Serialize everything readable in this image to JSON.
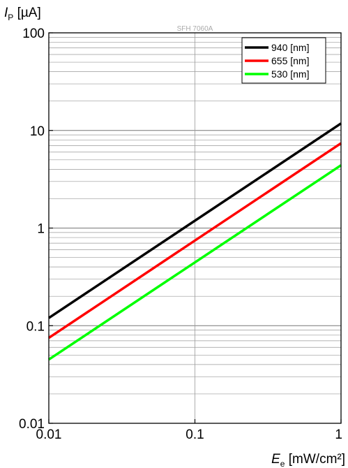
{
  "chart_data": {
    "type": "line",
    "watermark": "SFH 7060A",
    "xscale": "log",
    "yscale": "log",
    "xlim": [
      0.01,
      1
    ],
    "ylim": [
      0.01,
      100
    ],
    "xticks": [
      "0.01",
      "0.1",
      "1"
    ],
    "yticks": [
      "0.01",
      "0.1",
      "1",
      "10",
      "100"
    ],
    "xlabel": {
      "symbol": "E",
      "subscript": "e",
      "unit": " [mW/cm²]"
    },
    "ylabel": {
      "symbol": "I",
      "subscript": "P",
      "unit": " [µA]"
    },
    "grid": true,
    "legend_position": "top-right",
    "series": [
      {
        "name": "940 [nm]",
        "color": "#000000",
        "x": [
          0.01,
          1
        ],
        "y": [
          0.12,
          11.8
        ]
      },
      {
        "name": "655 [nm]",
        "color": "#ff0000",
        "x": [
          0.01,
          1
        ],
        "y": [
          0.075,
          7.4
        ]
      },
      {
        "name": "530 [nm]",
        "color": "#00ff00",
        "x": [
          0.01,
          1
        ],
        "y": [
          0.045,
          4.4
        ]
      }
    ]
  }
}
